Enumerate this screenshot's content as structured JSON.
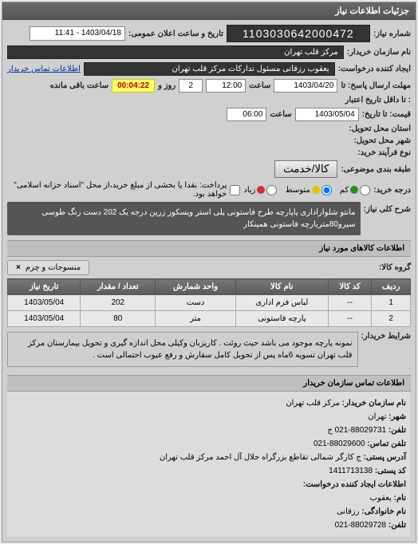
{
  "panel": {
    "title": "جزئیات اطلاعات نیاز"
  },
  "header": {
    "req_number_label": "شماره نیاز:",
    "req_number": "1103030642000472",
    "announce_label": "تاریخ و ساعت اعلان عمومی:",
    "announce_value": "1403/04/18 - 11:41",
    "buyer_label": "نام سازمان خریدار:",
    "buyer_value": "مرکز قلب تهران",
    "requester_label": "ایجاد کننده درخواست:",
    "requester_value": "یعقوب رزقانی مسئول تدارکات مرکز قلب تهران",
    "buyer_contact_link": "اطلاعات تماس خریدار",
    "deadline_send_label": "مهلت ارسال پاسخ: تا",
    "deadline_date": "1403/04/20",
    "time_label": "ساعت",
    "deadline_time": "12:00",
    "days_label": "روز و",
    "days_value": "2",
    "countdown": "00:04:22",
    "remaining_label": "ساعت باقی مانده",
    "validity_label": ": تا داقل تاریخ اعتبار",
    "validity_date": "1403/05/04",
    "validity_time": "06:00",
    "validity_until_label": "قیمت: تا تاریخ:",
    "delivery_place_label": "استان محل تحویل:",
    "delivery_city_label": "شهر محل تحویل:",
    "process_owner_label": "نوع فرآیند خرید:",
    "packing_label": "طبقه بندی موضوعی:",
    "packing_btn": "کالا/خدمت",
    "priority_label": "درجه خرید:",
    "priority_opts": [
      "کم",
      "متوسط",
      "زیاد"
    ],
    "priority_colors": [
      "#2e8b2e",
      "#e6c200",
      "#cc3333"
    ],
    "priority_selected": 1,
    "payment_note_label": "پرداخت: نقدا یا بخشی از مبلغ خرید،از محل \"اسناد خزانه اسلامی\" خواهد بود.",
    "title_section_label": "شرح کلی نیاز:",
    "desc_text": "مانتو شلواراداری پاپارچه طرح فاستونی پلی استر ویسکوز زرین درجه یک 202 دست رنگ طوسی سیرو80متریارچه فاستونی همینکار"
  },
  "goods": {
    "section_label": "اطلاعات کالاهای مورد نیاز",
    "group_label": "گروه کالا:",
    "group_chip": "منسوجات و چرم",
    "columns": [
      "ردیف",
      "کد کالا",
      "نام کالا",
      "واحد شمارش",
      "تعداد / مقدار",
      "تاریخ نیاز"
    ],
    "rows": [
      [
        "1",
        "--",
        "لباس فرم اداری",
        "دست",
        "202",
        "1403/05/04"
      ],
      [
        "2",
        "--",
        "پارچه فاستونی",
        "متر",
        "80",
        "1403/05/04"
      ]
    ],
    "buyer_note_label": "شرایط خریدار:",
    "buyer_note": "نمونه پارچه موجود می باشد حیث روئت . کاریزبان وکیلی محل اندازه گیری و تحویل بیمارستان مرکز قلب تهران تسویه 6ماه پس از تحویل کامل سفارش و رفع عیوب احتمالی است ."
  },
  "contact": {
    "section_title": "اطلاعات تماس سازمان خریدار",
    "org_label": "نام سازمان خریدار:",
    "org": "مرکز قلب تهران",
    "city_label": "شهر:",
    "city": "تهران",
    "phone_label": "تلفن:",
    "phone": "88029731-021 ج",
    "fax_label": "تلفن تماس:",
    "fax": "88029600-021",
    "address_label": "آدرس پستی:",
    "address": "ج کارگر شمالی تقاطع بزرگراه جلال آل احمد مرکز قلب تهران",
    "postal_label": "کد پستی:",
    "postal": "1411713138",
    "req_creator_label": "اطلاعات ایجاد کننده درخواست:",
    "name_label": "نام:",
    "name": "یعقوب",
    "family_label": "نام خانوادگی:",
    "family": "رزقانی",
    "creator_phone_label": "تلفن:",
    "creator_phone": "88029728-021"
  }
}
